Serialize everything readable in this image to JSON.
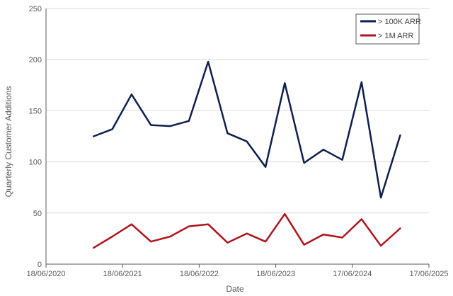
{
  "chart_data": {
    "type": "line",
    "xlabel": "Date",
    "ylabel": "Quarterly Customer Additions",
    "ylim": [
      0,
      250
    ],
    "yticks": [
      0,
      50,
      100,
      150,
      200,
      250
    ],
    "xlim": [
      "2020-06-18",
      "2025-06-17"
    ],
    "xticks": [
      "18/06/2020",
      "18/06/2021",
      "18/06/2022",
      "18/06/2023",
      "17/06/2024",
      "17/06/2025"
    ],
    "grid": "horizontal",
    "legend": "top-right",
    "x": [
      "2021-01-31",
      "2021-04-30",
      "2021-07-31",
      "2021-10-31",
      "2022-01-31",
      "2022-04-30",
      "2022-07-31",
      "2022-10-31",
      "2023-01-31",
      "2023-04-30",
      "2023-07-31",
      "2023-10-31",
      "2024-01-31",
      "2024-04-30",
      "2024-07-31",
      "2024-10-31",
      "2025-01-31"
    ],
    "series": [
      {
        "name": "> 100K ARR",
        "color": "#0d1f4f",
        "values": [
          125,
          132,
          166,
          136,
          135,
          140,
          198,
          128,
          120,
          95,
          177,
          99,
          112,
          102,
          178,
          65,
          126
        ]
      },
      {
        "name": "> 1M ARR",
        "color": "#b0141c",
        "values": [
          16,
          27,
          39,
          22,
          27,
          37,
          39,
          21,
          30,
          22,
          49,
          19,
          29,
          26,
          44,
          18,
          35
        ]
      }
    ]
  }
}
